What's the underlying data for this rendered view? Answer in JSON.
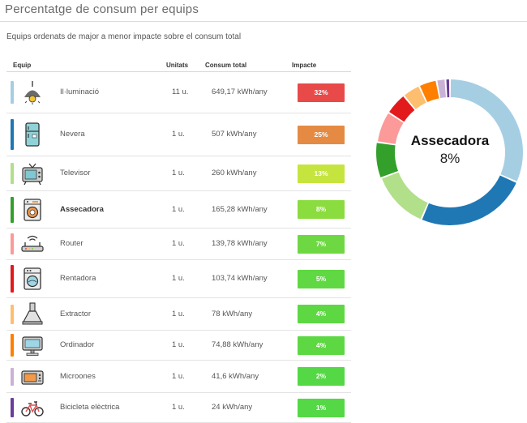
{
  "header": {
    "title": "Percentatge de consum per equips",
    "subtitle": "Equips ordenats de major a menor impacte sobre el consum total"
  },
  "table": {
    "columns": {
      "equip": "Equip",
      "units": "Unitats",
      "total": "Consum total",
      "impact": "Impacte"
    },
    "selected_index": 3
  },
  "chart_data": {
    "type": "pie",
    "variant": "donut",
    "categories": [
      "Il·luminació",
      "Nevera",
      "Televisor",
      "Assecadora",
      "Router",
      "Rentadora",
      "Extractor",
      "Ordinador",
      "Microones",
      "Bicicleta elèctrica"
    ],
    "units": [
      "11 u.",
      "1 u.",
      "1 u.",
      "1 u.",
      "1 u.",
      "1 u.",
      "1 u.",
      "1 u.",
      "1 u.",
      "1 u."
    ],
    "consumption": [
      "649,17 kWh/any",
      "507 kWh/any",
      "260 kWh/any",
      "165,28 kWh/any",
      "139,78 kWh/any",
      "103,74 kWh/any",
      "78 kWh/any",
      "74,88 kWh/any",
      "41,6 kWh/any",
      "24 kWh/any"
    ],
    "values": [
      32,
      25,
      13,
      8,
      7,
      5,
      4,
      4,
      2,
      1
    ],
    "value_labels": [
      "32%",
      "25%",
      "13%",
      "8%",
      "7%",
      "5%",
      "4%",
      "4%",
      "2%",
      "1%"
    ],
    "slice_colors": [
      "#a6cee3",
      "#1f78b4",
      "#b2df8a",
      "#33a02c",
      "#fb9a99",
      "#e31a1c",
      "#fdbf6f",
      "#ff7f00",
      "#cab2d6",
      "#6a3d9a"
    ],
    "badge_colors": [
      "#e84a4a",
      "#e58a43",
      "#c6e43e",
      "#8bdc3f",
      "#6ed843",
      "#60d843",
      "#5dd843",
      "#5dd843",
      "#55d845",
      "#55d845"
    ],
    "icons": [
      "lamp-icon",
      "fridge-icon",
      "tv-icon",
      "dryer-icon",
      "router-icon",
      "washer-icon",
      "extractor-icon",
      "computer-icon",
      "microwave-icon",
      "bicycle-icon"
    ],
    "center_label": "Assecadora",
    "center_value": "8%"
  }
}
